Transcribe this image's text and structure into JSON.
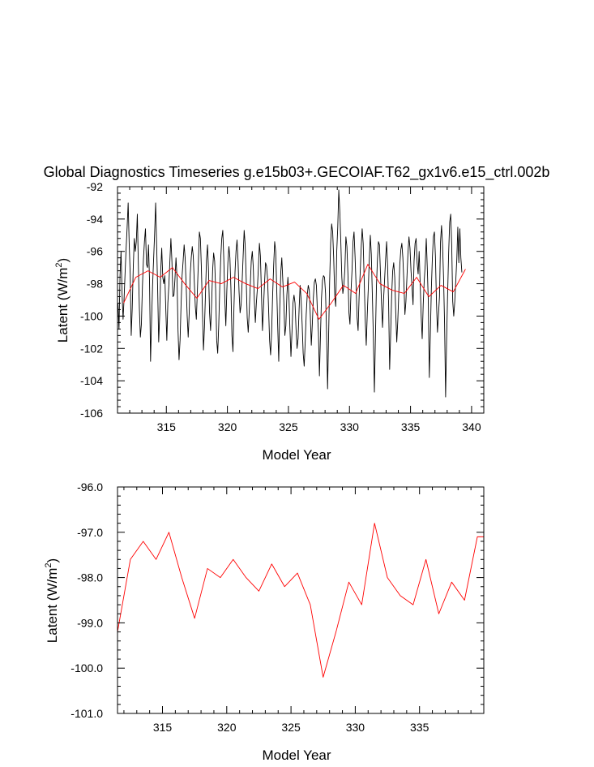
{
  "title": "Global Diagnostics Timeseries g.e15b03+.GECOIAF.T62_gx1v6.e15_ctrl.002b",
  "colors": {
    "monthly": "#000000",
    "annual": "#ff0000",
    "axes": "#000000"
  },
  "chart_data": [
    {
      "type": "line",
      "panel": "top",
      "xlabel": "Model Year",
      "ylabel": "Latent (W/m",
      "ylabel_sup": "2",
      "ylabel_close": ")",
      "xlim": [
        311,
        341
      ],
      "ylim": [
        -106,
        -92
      ],
      "xticks": [
        315,
        320,
        325,
        330,
        335,
        340
      ],
      "xtick_labels": [
        "315",
        "320",
        "325",
        "330",
        "335",
        "340"
      ],
      "yticks": [
        -106,
        -104,
        -102,
        -100,
        -98,
        -96,
        -94,
        -92
      ],
      "ytick_labels": [
        "-106",
        "-104",
        "-102",
        "-100",
        "-98",
        "-96",
        "-94",
        "-92"
      ],
      "series": [
        {
          "name": "monthly",
          "color": "#000000",
          "x_start": 311.04,
          "x_step": 0.08333,
          "values": [
            -99.2,
            -100.8,
            -97.5,
            -96.0,
            -98.6,
            -100.2,
            -98.9,
            -97.3,
            -95.8,
            -94.5,
            -93.0,
            -95.5,
            -97.4,
            -101.2,
            -99.5,
            -97.0,
            -95.2,
            -96.0,
            -95.4,
            -93.7,
            -96.8,
            -99.5,
            -101.3,
            -100.5,
            -98.2,
            -96.5,
            -95.4,
            -94.6,
            -96.8,
            -97.0,
            -95.6,
            -97.8,
            -102.8,
            -100.3,
            -98.1,
            -96.5,
            -94.9,
            -93.0,
            -95.6,
            -98.4,
            -101.6,
            -99.9,
            -97.2,
            -95.8,
            -97.6,
            -98.0,
            -97.5,
            -99.6,
            -101.5,
            -99.2,
            -98.1,
            -96.6,
            -95.2,
            -96.6,
            -98.8,
            -98.7,
            -97.7,
            -96.4,
            -97.6,
            -100.9,
            -102.7,
            -101.5,
            -99.3,
            -97.5,
            -96.6,
            -95.6,
            -96.4,
            -98.1,
            -100.0,
            -101.3,
            -99.8,
            -97.4,
            -96.4,
            -95.7,
            -96.3,
            -97.9,
            -99.4,
            -100.2,
            -98.5,
            -96.7,
            -94.8,
            -95.2,
            -97.1,
            -99.7,
            -102.1,
            -100.7,
            -98.6,
            -96.5,
            -95.6,
            -97.2,
            -99.8,
            -100.9,
            -99.3,
            -97.2,
            -96.1,
            -96.6,
            -98.4,
            -101.5,
            -102.3,
            -100.6,
            -98.3,
            -96.4,
            -95.2,
            -94.7,
            -96.5,
            -99.0,
            -100.6,
            -98.4,
            -96.7,
            -95.7,
            -96.4,
            -98.3,
            -101.2,
            -102.2,
            -99.4,
            -97.3,
            -96.0,
            -95.3,
            -96.6,
            -98.5,
            -99.8,
            -99.3,
            -97.9,
            -96.3,
            -94.7,
            -95.6,
            -97.7,
            -100.1,
            -101.0,
            -99.7,
            -98.1,
            -96.6,
            -96.0,
            -97.0,
            -99.0,
            -100.4,
            -99.2,
            -98.3,
            -97.0,
            -95.5,
            -96.3,
            -98.6,
            -100.9,
            -99.5,
            -98.0,
            -96.7,
            -96.9,
            -97.7,
            -99.5,
            -101.5,
            -102.4,
            -101.0,
            -98.7,
            -96.9,
            -95.4,
            -96.0,
            -98.3,
            -100.7,
            -102.8,
            -99.5,
            -97.3,
            -96.4,
            -97.8,
            -99.1,
            -101.2,
            -100.6,
            -98.7,
            -97.6,
            -98.8,
            -100.8,
            -102.5,
            -101.0,
            -99.2,
            -98.7,
            -99.2,
            -100.8,
            -102.0,
            -101.4,
            -99.6,
            -98.1,
            -99.0,
            -100.5,
            -102.3,
            -103.1,
            -101.6,
            -99.9,
            -98.7,
            -98.1,
            -98.4,
            -99.9,
            -101.8,
            -100.5,
            -98.9,
            -97.9,
            -97.7,
            -98.1,
            -99.7,
            -101.0,
            -103.7,
            -101.2,
            -98.9,
            -97.8,
            -97.5,
            -97.6,
            -98.6,
            -101.0,
            -104.5,
            -101.3,
            -97.9,
            -95.5,
            -94.3,
            -94.8,
            -96.4,
            -98.7,
            -99.4,
            -96.0,
            -94.5,
            -92.2,
            -93.5,
            -95.4,
            -97.6,
            -98.6,
            -98.1,
            -97.1,
            -95.1,
            -95.7,
            -97.4,
            -99.8,
            -100.5,
            -98.5,
            -97.2,
            -95.4,
            -94.8,
            -96.3,
            -98.1,
            -100.1,
            -100.9,
            -98.8,
            -97.4,
            -95.8,
            -94.6,
            -95.5,
            -97.8,
            -100.2,
            -101.8,
            -99.9,
            -98.3,
            -96.5,
            -95.0,
            -96.2,
            -98.7,
            -101.3,
            -104.7,
            -101.4,
            -98.2,
            -96.5,
            -95.4,
            -95.6,
            -97.4,
            -99.2,
            -100.7,
            -99.0,
            -97.8,
            -96.5,
            -95.4,
            -96.9,
            -99.3,
            -103.3,
            -101.1,
            -98.7,
            -97.2,
            -96.7,
            -97.6,
            -99.8,
            -101.6,
            -100.3,
            -98.6,
            -96.8,
            -95.9,
            -95.5,
            -96.4,
            -97.9,
            -99.9,
            -99.1,
            -97.6,
            -96.1,
            -95.1,
            -95.8,
            -97.2,
            -98.2,
            -99.3,
            -96.6,
            -95.5,
            -95.2,
            -96.7,
            -97.4,
            -96.0,
            -98.0,
            -100.0,
            -101.4,
            -99.3,
            -97.8,
            -96.8,
            -95.2,
            -97.0,
            -99.1,
            -103.8,
            -101.2,
            -98.3,
            -96.4,
            -95.1,
            -94.8,
            -96.3,
            -99.1,
            -101.0,
            -99.9,
            -98.8,
            -95.4,
            -94.4,
            -95.6,
            -97.6,
            -100.5,
            -105.0,
            -101.4,
            -98.6,
            -96.1,
            -94.2,
            -93.7,
            -95.6,
            -99.1,
            -100.0,
            -99.1,
            -97.8,
            -96.5,
            -94.5,
            -96.7,
            -94.6,
            -96.4,
            -97.3
          ]
        },
        {
          "name": "annual",
          "color": "#ff0000",
          "x": [
            311.5,
            312.5,
            313.5,
            314.5,
            315.5,
            316.5,
            317.5,
            318.5,
            319.5,
            320.5,
            321.5,
            322.5,
            323.5,
            324.5,
            325.5,
            326.5,
            327.5,
            328.5,
            329.5,
            330.5,
            331.5,
            332.5,
            333.5,
            334.5,
            335.5,
            336.5,
            337.5,
            338.5,
            339.5
          ],
          "values": [
            -99.2,
            -97.6,
            -97.2,
            -97.6,
            -97.0,
            -98.0,
            -98.9,
            -97.8,
            -98.0,
            -97.6,
            -98.0,
            -98.3,
            -97.7,
            -98.2,
            -97.9,
            -98.6,
            -100.2,
            -99.2,
            -98.1,
            -98.6,
            -96.8,
            -98.0,
            -98.4,
            -98.6,
            -97.6,
            -98.8,
            -98.1,
            -98.5,
            -97.1
          ]
        }
      ]
    },
    {
      "type": "line",
      "panel": "bottom",
      "xlabel": "Model Year",
      "ylabel": "Latent (W/m",
      "ylabel_sup": "2",
      "ylabel_close": ")",
      "xlim": [
        311.5,
        340
      ],
      "ylim": [
        -101,
        -96
      ],
      "xticks": [
        315,
        320,
        325,
        330,
        335
      ],
      "xtick_labels": [
        "315",
        "320",
        "325",
        "330",
        "335"
      ],
      "yticks": [
        -101,
        -100,
        -99,
        -98,
        -97,
        -96
      ],
      "ytick_labels": [
        "-101.0",
        "-100.0",
        "-99.0",
        "-98.0",
        "-97.0",
        "-96.0"
      ],
      "series": [
        {
          "name": "annual",
          "color": "#ff0000",
          "x": [
            311.5,
            312.5,
            313.5,
            314.5,
            315.5,
            316.5,
            317.5,
            318.5,
            319.5,
            320.5,
            321.5,
            322.5,
            323.5,
            324.5,
            325.5,
            326.5,
            327.5,
            328.5,
            329.5,
            330.5,
            331.5,
            332.5,
            333.5,
            334.5,
            335.5,
            336.5,
            337.5,
            338.5,
            339.5,
            340.0
          ],
          "values": [
            -99.2,
            -97.6,
            -97.2,
            -97.6,
            -97.0,
            -98.0,
            -98.9,
            -97.8,
            -98.0,
            -97.6,
            -98.0,
            -98.3,
            -97.7,
            -98.2,
            -97.9,
            -98.6,
            -100.2,
            -99.2,
            -98.1,
            -98.6,
            -96.8,
            -98.0,
            -98.4,
            -98.6,
            -97.6,
            -98.8,
            -98.1,
            -98.5,
            -97.1,
            -97.1
          ]
        }
      ]
    }
  ]
}
